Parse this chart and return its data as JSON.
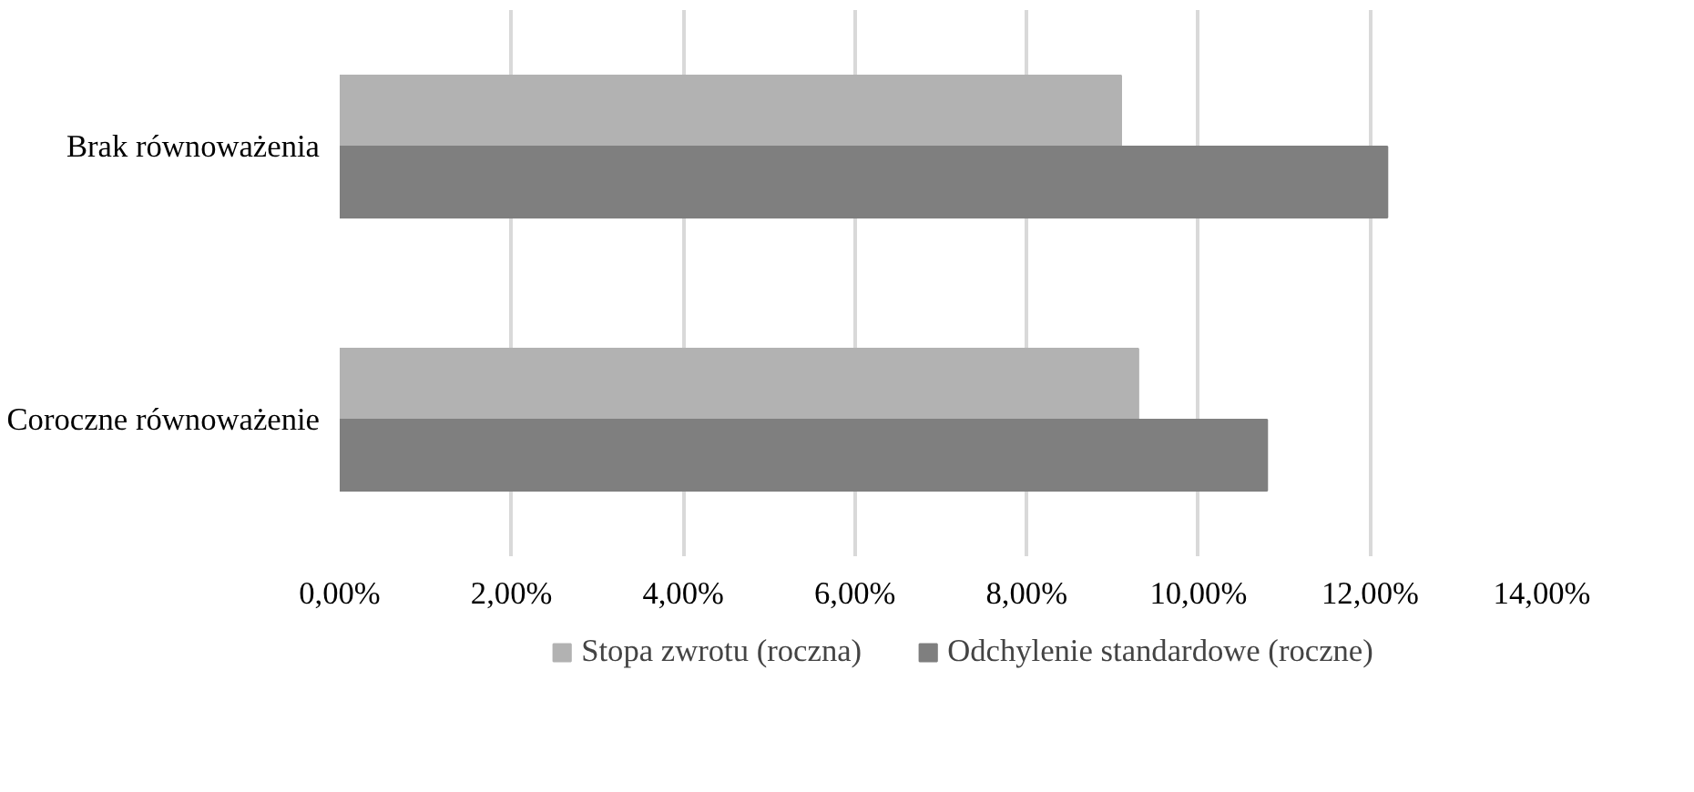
{
  "chart_data": {
    "type": "bar",
    "orientation": "horizontal",
    "categories": [
      "Brak równoważenia",
      "Coroczne równoważenie"
    ],
    "series": [
      {
        "name": "Stopa zwrotu (roczna)",
        "color": "#b2b2b2",
        "values": [
          9.1,
          9.3
        ]
      },
      {
        "name": "Odchylenie standardowe (roczne)",
        "color": "#7f7f7f",
        "values": [
          12.2,
          10.8
        ]
      }
    ],
    "xlim": [
      0,
      14
    ],
    "xticks": [
      {
        "value": 0,
        "label": "0,00%"
      },
      {
        "value": 2,
        "label": "2,00%"
      },
      {
        "value": 4,
        "label": "4,00%"
      },
      {
        "value": 6,
        "label": "6,00%"
      },
      {
        "value": 8,
        "label": "8,00%"
      },
      {
        "value": 10,
        "label": "10,00%"
      },
      {
        "value": 12,
        "label": "12,00%"
      },
      {
        "value": 14,
        "label": "14,00%"
      }
    ],
    "grid": "x",
    "legend": "bottom"
  }
}
